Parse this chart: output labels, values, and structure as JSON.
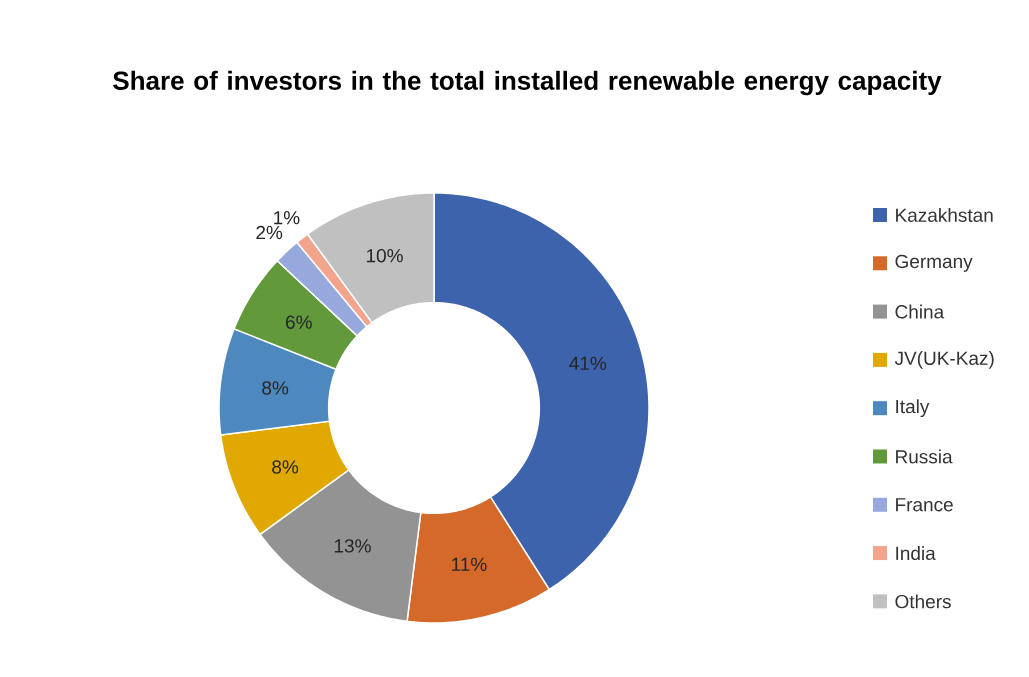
{
  "chart_data": {
    "type": "donut",
    "title": "Share of investors in the total installed renewable energy capacity",
    "categories": [
      "Kazakhstan",
      "Germany",
      "China",
      "JV(UK-Kaz)",
      "Italy",
      "Russia",
      "France",
      "India",
      "Others"
    ],
    "values": [
      41,
      11,
      13,
      8,
      8,
      6,
      2,
      1,
      10
    ],
    "value_labels": [
      "41%",
      "11%",
      "13%",
      "8%",
      "8%",
      "6%",
      "2%",
      "1%",
      "10%"
    ],
    "colors": [
      "#3d63ad",
      "#d4692a",
      "#939393",
      "#e0a800",
      "#4d88bf",
      "#62993b",
      "#97a9dc",
      "#f2a48c",
      "#c0c0c0"
    ],
    "legend": "right"
  }
}
